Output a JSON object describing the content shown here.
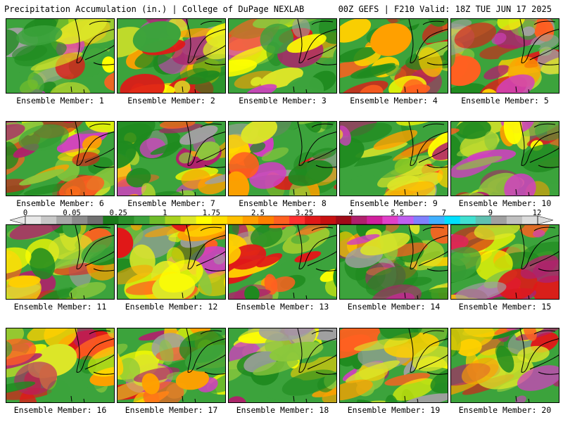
{
  "header": {
    "left": "Precipitation Accumulation (in.) | College of DuPage NEXLAB",
    "right": "00Z GEFS | F210 Valid: 18Z TUE JUN 17 2025"
  },
  "colorbar": {
    "tick_labels": [
      "0",
      "0.05",
      "0.25",
      "1",
      "1.75",
      "2.5",
      "3.25",
      "4",
      "5.5",
      "7",
      "9",
      "12"
    ],
    "colors": [
      "#e8e8e8",
      "#c8c8c8",
      "#a8a8a8",
      "#8c8c8c",
      "#707070",
      "#1a7a1a",
      "#2a8f2a",
      "#3ca33c",
      "#6ebc2a",
      "#a8d21e",
      "#dce628",
      "#ffff00",
      "#ffe000",
      "#ffc000",
      "#ffa000",
      "#ff8000",
      "#ff6020",
      "#ff3030",
      "#e01818",
      "#c81010",
      "#a00c18",
      "#b0206c",
      "#d0209c",
      "#e040c8",
      "#c060f0",
      "#8080ff",
      "#40b0ff",
      "#00e0ff",
      "#40e0d0",
      "#60c0b0",
      "#a0a0a0",
      "#c0c0c0",
      "#dcdcdc"
    ]
  },
  "panels": [
    {
      "label": "Ensemble Member: 1"
    },
    {
      "label": "Ensemble Member: 2"
    },
    {
      "label": "Ensemble Member: 3"
    },
    {
      "label": "Ensemble Member: 4"
    },
    {
      "label": "Ensemble Member: 5"
    },
    {
      "label": "Ensemble Member: 6"
    },
    {
      "label": "Ensemble Member: 7"
    },
    {
      "label": "Ensemble Member: 8"
    },
    {
      "label": "Ensemble Member: 9"
    },
    {
      "label": "Ensemble Member: 10"
    },
    {
      "label": "Ensemble Member: 11"
    },
    {
      "label": "Ensemble Member: 12"
    },
    {
      "label": "Ensemble Member: 13"
    },
    {
      "label": "Ensemble Member: 14"
    },
    {
      "label": "Ensemble Member: 15"
    },
    {
      "label": "Ensemble Member: 16"
    },
    {
      "label": "Ensemble Member: 17"
    },
    {
      "label": "Ensemble Member: 18"
    },
    {
      "label": "Ensemble Member: 19"
    },
    {
      "label": "Ensemble Member: 20"
    }
  ]
}
